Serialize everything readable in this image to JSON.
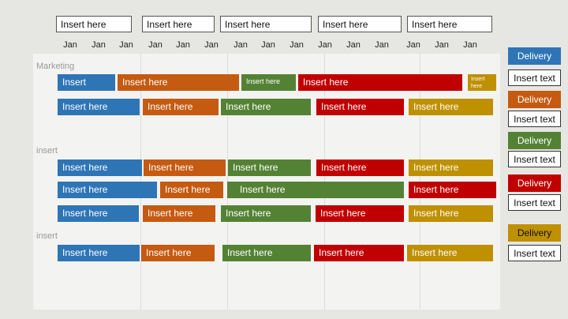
{
  "header": {
    "boxes": [
      "Insert here",
      "Insert here",
      "Insert here",
      "Insert here",
      "Insert here"
    ],
    "months": [
      "Jan",
      "Jan",
      "Jan",
      "Jan",
      "Jan",
      "Jan",
      "Jan",
      "Jan",
      "Jan",
      "Jan",
      "Jan",
      "Jan",
      "Jan",
      "Jan",
      "Jan"
    ]
  },
  "sections": [
    {
      "label": "Marketing",
      "rows": [
        [
          "Insert",
          "Insert here",
          "Insert here",
          "Insert here",
          "Insert here"
        ],
        [
          "Insert here",
          "Insert here",
          "Insert here",
          "Insert here",
          "Insert here"
        ]
      ]
    },
    {
      "label": "insert",
      "rows": [
        [
          "Insert here",
          "Insert here",
          "Insert here",
          "Insert here",
          "Insert here"
        ],
        [
          "Insert here",
          "Insert here",
          "Insert here",
          "Insert here"
        ],
        [
          "Insert here",
          "Insert here",
          "Insert here",
          "Insert here",
          "Insert here"
        ]
      ]
    },
    {
      "label": "insert",
      "rows": [
        [
          "Insert here",
          "Insert here",
          "Insert here",
          "Insert here",
          "Insert here"
        ]
      ]
    }
  ],
  "legend": [
    {
      "label": "Delivery",
      "text": "Insert text"
    },
    {
      "label": "Delivery",
      "text": "Insert text"
    },
    {
      "label": "Delivery",
      "text": "Insert text"
    },
    {
      "label": "Delivery",
      "text": "Insert text"
    },
    {
      "label": "Delivery",
      "text": "Insert text"
    }
  ]
}
